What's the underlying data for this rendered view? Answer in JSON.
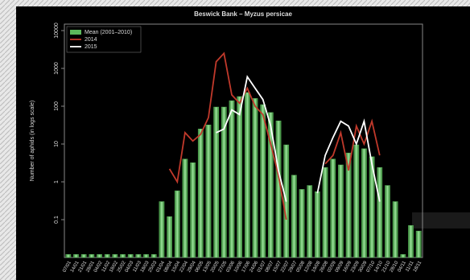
{
  "chart_data": {
    "type": "bar",
    "title": "Beswick Bank – Myzus persicae",
    "y_label": "Number of aphids (in logs scale)",
    "log_scale": true,
    "ylim": [
      0.01,
      10000
    ],
    "yticks": [
      0.1,
      1,
      10,
      100,
      1000,
      10000
    ],
    "legend": "upper left",
    "categories": [
      "07/01",
      "14/01",
      "21/01",
      "28/01",
      "04/02",
      "11/02",
      "18/02",
      "25/02",
      "04/03",
      "11/03",
      "18/03",
      "25/03",
      "01/04",
      "08/04",
      "15/04",
      "22/04",
      "29/04",
      "06/05",
      "13/05",
      "20/05",
      "27/05",
      "03/06",
      "10/06",
      "17/06",
      "24/06",
      "01/07",
      "08/07",
      "15/07",
      "22/07",
      "29/07",
      "05/08",
      "12/08",
      "19/08",
      "26/08",
      "02/09",
      "09/09",
      "16/09",
      "23/09",
      "30/09",
      "07/10",
      "14/10",
      "21/10",
      "28/10",
      "04/11",
      "11/11",
      "18/11"
    ],
    "series": [
      {
        "name": "Mean (2001–2010)",
        "type": "bar",
        "color": "#5cb85c",
        "values": [
          0.012,
          0.012,
          0.012,
          0.012,
          0.012,
          0.012,
          0.012,
          0.012,
          0.012,
          0.012,
          0.012,
          0.012,
          0.3,
          0.12,
          0.58,
          4,
          3.2,
          25,
          32,
          95,
          95,
          140,
          180,
          230,
          160,
          110,
          68,
          41,
          9.5,
          1.5,
          0.63,
          0.8,
          0.55,
          2.4,
          4,
          2.8,
          5.8,
          9.5,
          7.5,
          4.6,
          2.4,
          0.8,
          0.3,
          0.012,
          0.07,
          0.05
        ]
      },
      {
        "name": "2014",
        "type": "line",
        "color": "#c0392b",
        "values": [
          null,
          null,
          null,
          null,
          null,
          null,
          null,
          null,
          null,
          null,
          null,
          null,
          null,
          2.2,
          1,
          20,
          12,
          18,
          50,
          1500,
          2500,
          200,
          120,
          300,
          100,
          60,
          10,
          1.5,
          0.1,
          null,
          null,
          null,
          null,
          3,
          5,
          20,
          2,
          30,
          10,
          40,
          5,
          null,
          null,
          null,
          null,
          null
        ]
      },
      {
        "name": "2015",
        "type": "line",
        "color": "#ffffff",
        "values": [
          null,
          null,
          null,
          null,
          null,
          null,
          null,
          null,
          null,
          null,
          null,
          null,
          null,
          null,
          null,
          null,
          null,
          null,
          null,
          20,
          25,
          80,
          60,
          600,
          300,
          150,
          30,
          2,
          0.3,
          null,
          null,
          null,
          0.5,
          5,
          15,
          40,
          30,
          10,
          40,
          3,
          0.3,
          null,
          null,
          null,
          null,
          null
        ]
      }
    ]
  }
}
